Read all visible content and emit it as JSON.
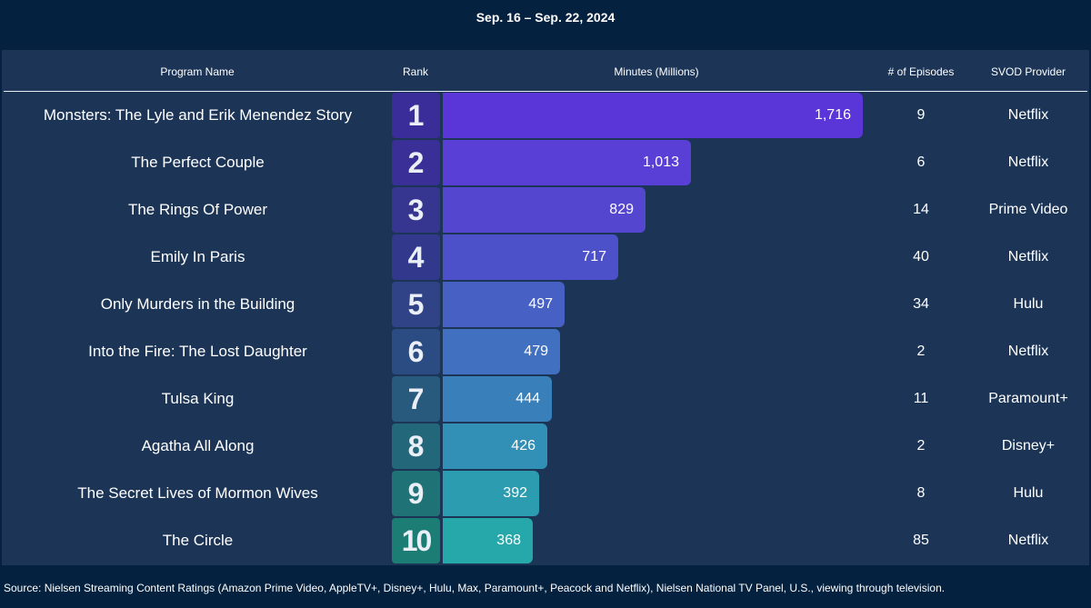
{
  "date_range": "Sep. 16 – Sep. 22, 2024",
  "columns": {
    "program": "Program Name",
    "rank": "Rank",
    "minutes": "Minutes (Millions)",
    "episodes": "# of Episodes",
    "provider": "SVOD Provider"
  },
  "source": "Source: Nielsen Streaming Content Ratings (Amazon Prime Video, AppleTV+, Disney+, Hulu, Max, Paramount+, Peacock and Netflix), Nielsen National TV Panel, U.S., viewing through television.",
  "chart_data": {
    "type": "bar",
    "title": "Sep. 16 – Sep. 22, 2024",
    "xlabel": "Minutes (Millions)",
    "ylabel": "Program Name",
    "xlim": [
      0,
      1716
    ],
    "categories": [
      "Monsters: The Lyle and Erik Menendez Story",
      "The Perfect Couple",
      "The Rings Of Power",
      "Emily In Paris",
      "Only Murders in the Building",
      "Into the Fire: The Lost Daughter",
      "Tulsa King",
      "Agatha All Along",
      "The Secret Lives of Mormon Wives",
      "The Circle"
    ],
    "values": [
      1716,
      1013,
      829,
      717,
      497,
      479,
      444,
      426,
      392,
      368
    ],
    "value_labels": [
      "1,716",
      "1,013",
      "829",
      "717",
      "497",
      "479",
      "444",
      "426",
      "392",
      "368"
    ],
    "ranks": [
      "1",
      "2",
      "3",
      "4",
      "5",
      "6",
      "7",
      "8",
      "9",
      "10"
    ],
    "episodes": [
      "9",
      "6",
      "14",
      "40",
      "34",
      "2",
      "11",
      "2",
      "8",
      "85"
    ],
    "providers": [
      "Netflix",
      "Netflix",
      "Prime Video",
      "Netflix",
      "Hulu",
      "Netflix",
      "Paramount+",
      "Disney+",
      "Hulu",
      "Netflix"
    ],
    "bar_colors": [
      "#5a35d8",
      "#5a3fd6",
      "#5446cf",
      "#4d51c9",
      "#4760c4",
      "#4170c0",
      "#3980bb",
      "#328fb6",
      "#2c9cb1",
      "#26a8aa"
    ],
    "rank_colors": [
      "#3a2d9a",
      "#3a2f96",
      "#363690",
      "#32398c",
      "#2f4386",
      "#2b4c82",
      "#285a7d",
      "#23677b",
      "#1f7377",
      "#1c7d74"
    ]
  }
}
